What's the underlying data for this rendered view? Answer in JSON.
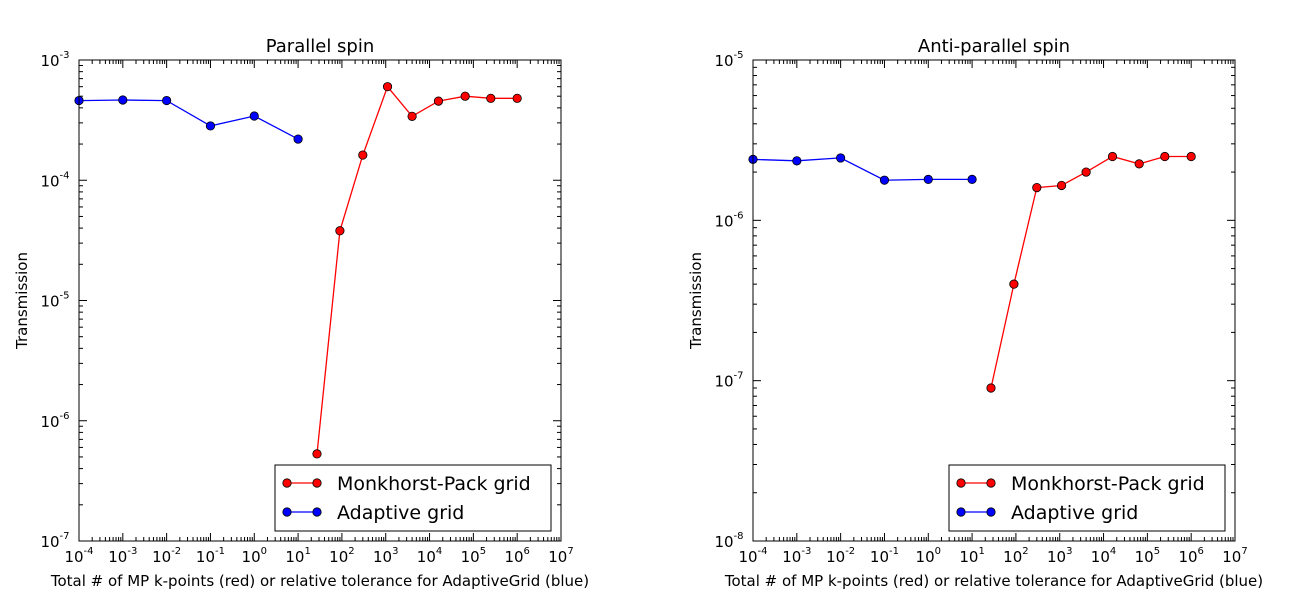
{
  "colors": {
    "red": "#ff0000",
    "blue": "#0000ff",
    "axes": "#000000"
  },
  "chart_data": [
    {
      "type": "line",
      "title": "Parallel spin",
      "xlabel": "Total # of MP k-points (red) or relative tolerance for AdaptiveGrid (blue)",
      "ylabel": "Transmission",
      "xscale": "log",
      "yscale": "log",
      "xlim": [
        0.0001,
        10000000
      ],
      "ylim": [
        1e-07,
        0.001
      ],
      "x_ticks": [
        {
          "base": "10",
          "exp": "-4",
          "value": 0.0001
        },
        {
          "base": "10",
          "exp": "-3",
          "value": 0.001
        },
        {
          "base": "10",
          "exp": "-2",
          "value": 0.01
        },
        {
          "base": "10",
          "exp": "-1",
          "value": 0.1
        },
        {
          "base": "10",
          "exp": "0",
          "value": 1
        },
        {
          "base": "10",
          "exp": "1",
          "value": 10
        },
        {
          "base": "10",
          "exp": "2",
          "value": 100
        },
        {
          "base": "10",
          "exp": "3",
          "value": 1000
        },
        {
          "base": "10",
          "exp": "4",
          "value": 10000
        },
        {
          "base": "10",
          "exp": "5",
          "value": 100000
        },
        {
          "base": "10",
          "exp": "6",
          "value": 1000000
        },
        {
          "base": "10",
          "exp": "7",
          "value": 10000000
        }
      ],
      "y_ticks": [
        {
          "base": "10",
          "exp": "-7",
          "value": 1e-07
        },
        {
          "base": "10",
          "exp": "-6",
          "value": 1e-06
        },
        {
          "base": "10",
          "exp": "-5",
          "value": 1e-05
        },
        {
          "base": "10",
          "exp": "-4",
          "value": 0.0001
        },
        {
          "base": "10",
          "exp": "-3",
          "value": 0.001
        }
      ],
      "legend": "lower-right",
      "grid": false,
      "series": [
        {
          "name": "Monkhorst-Pack grid",
          "color": "red",
          "x": [
            27,
            90,
            300,
            1100,
            4000,
            16000,
            65000,
            250000,
            1000000
          ],
          "y": [
            5.3e-07,
            3.8e-05,
            0.000162,
            0.0006,
            0.00034,
            0.000455,
            0.0005,
            0.00048,
            0.00048
          ]
        },
        {
          "name": "Adaptive grid",
          "color": "blue",
          "x": [
            0.0001,
            0.001,
            0.01,
            0.1,
            1,
            10
          ],
          "y": [
            0.00046,
            0.000465,
            0.00046,
            0.000283,
            0.000342,
            0.00022
          ]
        }
      ]
    },
    {
      "type": "line",
      "title": "Anti-parallel spin",
      "xlabel": "Total # of MP k-points (red) or relative tolerance for AdaptiveGrid (blue)",
      "ylabel": "Transmission",
      "xscale": "log",
      "yscale": "log",
      "xlim": [
        0.0001,
        10000000
      ],
      "ylim": [
        1e-08,
        1e-05
      ],
      "x_ticks": [
        {
          "base": "10",
          "exp": "-4",
          "value": 0.0001
        },
        {
          "base": "10",
          "exp": "-3",
          "value": 0.001
        },
        {
          "base": "10",
          "exp": "-2",
          "value": 0.01
        },
        {
          "base": "10",
          "exp": "-1",
          "value": 0.1
        },
        {
          "base": "10",
          "exp": "0",
          "value": 1
        },
        {
          "base": "10",
          "exp": "1",
          "value": 10
        },
        {
          "base": "10",
          "exp": "2",
          "value": 100
        },
        {
          "base": "10",
          "exp": "3",
          "value": 1000
        },
        {
          "base": "10",
          "exp": "4",
          "value": 10000
        },
        {
          "base": "10",
          "exp": "5",
          "value": 100000
        },
        {
          "base": "10",
          "exp": "6",
          "value": 1000000
        },
        {
          "base": "10",
          "exp": "7",
          "value": 10000000
        }
      ],
      "y_ticks": [
        {
          "base": "10",
          "exp": "-8",
          "value": 1e-08
        },
        {
          "base": "10",
          "exp": "-7",
          "value": 1e-07
        },
        {
          "base": "10",
          "exp": "-6",
          "value": 1e-06
        },
        {
          "base": "10",
          "exp": "-5",
          "value": 1e-05
        }
      ],
      "legend": "lower-right",
      "grid": false,
      "series": [
        {
          "name": "Monkhorst-Pack grid",
          "color": "red",
          "x": [
            27,
            90,
            300,
            1100,
            4000,
            16000,
            65000,
            250000,
            1000000
          ],
          "y": [
            9e-08,
            4e-07,
            1.6e-06,
            1.65e-06,
            2e-06,
            2.5e-06,
            2.25e-06,
            2.5e-06,
            2.5e-06
          ]
        },
        {
          "name": "Adaptive grid",
          "color": "blue",
          "x": [
            0.0001,
            0.001,
            0.01,
            0.1,
            1,
            10
          ],
          "y": [
            2.4e-06,
            2.35e-06,
            2.45e-06,
            1.78e-06,
            1.8e-06,
            1.8e-06
          ]
        }
      ]
    }
  ]
}
